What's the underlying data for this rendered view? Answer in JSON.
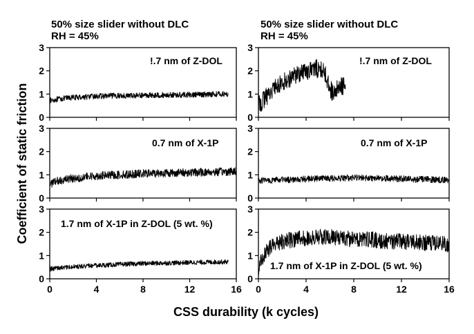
{
  "figure": {
    "ylabel": "Coefficient of static friction",
    "xlabel": "CSS durability (k cycles)",
    "columns": [
      {
        "title_line1": "50% size slider without DLC",
        "title_line2": "RH = 45%"
      },
      {
        "title_line1": "50% size slider without DLC",
        "title_line2": "RH = 45%"
      }
    ]
  },
  "chart_data": [
    {
      "type": "line",
      "column": 1,
      "row": 1,
      "annotation": "!.7 nm of Z-DOL",
      "xlim": [
        0,
        16
      ],
      "ylim": [
        0,
        3
      ],
      "xticks": [
        0,
        4,
        8,
        12,
        16
      ],
      "yticks": [
        0,
        1,
        2,
        3
      ],
      "series": [
        {
          "x": [
            0,
            1,
            2,
            3,
            4,
            5,
            6,
            7,
            8,
            9,
            10,
            11,
            12,
            13,
            14,
            15.3
          ],
          "y": [
            0.72,
            0.8,
            0.85,
            0.88,
            0.9,
            0.92,
            0.93,
            0.93,
            0.95,
            0.95,
            0.96,
            0.96,
            0.97,
            0.98,
            1.0,
            1.0
          ],
          "noise": 0.12
        }
      ]
    },
    {
      "type": "line",
      "column": 2,
      "row": 1,
      "annotation": "!.7 nm of Z-DOL",
      "xlim": [
        0,
        16
      ],
      "ylim": [
        0,
        3
      ],
      "xticks": [
        0,
        4,
        8,
        12,
        16
      ],
      "yticks": [
        0,
        1,
        2,
        3
      ],
      "series": [
        {
          "x": [
            0,
            0.5,
            1,
            2,
            3,
            4,
            5,
            5.5,
            6,
            6.3,
            6.6,
            7,
            7.3
          ],
          "y": [
            0.5,
            0.8,
            1.1,
            1.5,
            1.8,
            2.0,
            2.1,
            2.0,
            1.3,
            0.9,
            1.2,
            1.35,
            1.3
          ],
          "noise": 0.4
        }
      ]
    },
    {
      "type": "line",
      "column": 1,
      "row": 2,
      "annotation": "0.7 nm of X-1P",
      "xlim": [
        0,
        16
      ],
      "ylim": [
        0,
        3
      ],
      "xticks": [
        0,
        4,
        8,
        12,
        16
      ],
      "yticks": [
        0,
        1,
        2,
        3
      ],
      "series": [
        {
          "x": [
            0,
            0.5,
            1,
            2,
            3,
            4,
            6,
            8,
            10,
            12,
            14,
            16
          ],
          "y": [
            0.6,
            0.7,
            0.78,
            0.85,
            0.9,
            0.95,
            1.0,
            1.05,
            1.08,
            1.1,
            1.12,
            1.15
          ],
          "noise": 0.18
        }
      ]
    },
    {
      "type": "line",
      "column": 2,
      "row": 2,
      "annotation": "0.7 nm of X-1P",
      "xlim": [
        0,
        16
      ],
      "ylim": [
        0,
        3
      ],
      "xticks": [
        0,
        4,
        8,
        12,
        16
      ],
      "yticks": [
        0,
        1,
        2,
        3
      ],
      "series": [
        {
          "x": [
            0,
            2,
            4,
            6,
            8,
            10,
            12,
            14,
            16
          ],
          "y": [
            0.75,
            0.78,
            0.82,
            0.85,
            0.87,
            0.85,
            0.83,
            0.8,
            0.78
          ],
          "noise": 0.14
        }
      ]
    },
    {
      "type": "line",
      "column": 1,
      "row": 3,
      "annotation": "1.7 nm of X-1P in Z-DOL (5 wt. %)",
      "xlim": [
        0,
        16
      ],
      "ylim": [
        0,
        3
      ],
      "xticks": [
        0,
        4,
        8,
        12,
        16
      ],
      "yticks": [
        0,
        1,
        2,
        3
      ],
      "series": [
        {
          "x": [
            0,
            1,
            2,
            4,
            6,
            8,
            10,
            12,
            14,
            15.3
          ],
          "y": [
            0.42,
            0.48,
            0.52,
            0.57,
            0.62,
            0.66,
            0.68,
            0.7,
            0.72,
            0.73
          ],
          "noise": 0.1
        }
      ]
    },
    {
      "type": "line",
      "column": 2,
      "row": 3,
      "annotation": "1.7 nm of X-1P in Z-DOL (5 wt. %)",
      "xlim": [
        0,
        16
      ],
      "ylim": [
        0,
        3
      ],
      "xticks": [
        0,
        4,
        8,
        12,
        16
      ],
      "yticks": [
        0,
        1,
        2,
        3
      ],
      "series": [
        {
          "x": [
            0,
            0.3,
            1,
            2,
            3,
            4,
            5,
            6,
            7,
            8,
            9,
            10,
            12,
            14,
            16
          ],
          "y": [
            0.4,
            0.9,
            1.4,
            1.6,
            1.7,
            1.75,
            1.8,
            1.8,
            1.75,
            1.7,
            1.7,
            1.65,
            1.6,
            1.55,
            1.5
          ],
          "noise": 0.35
        }
      ]
    }
  ]
}
